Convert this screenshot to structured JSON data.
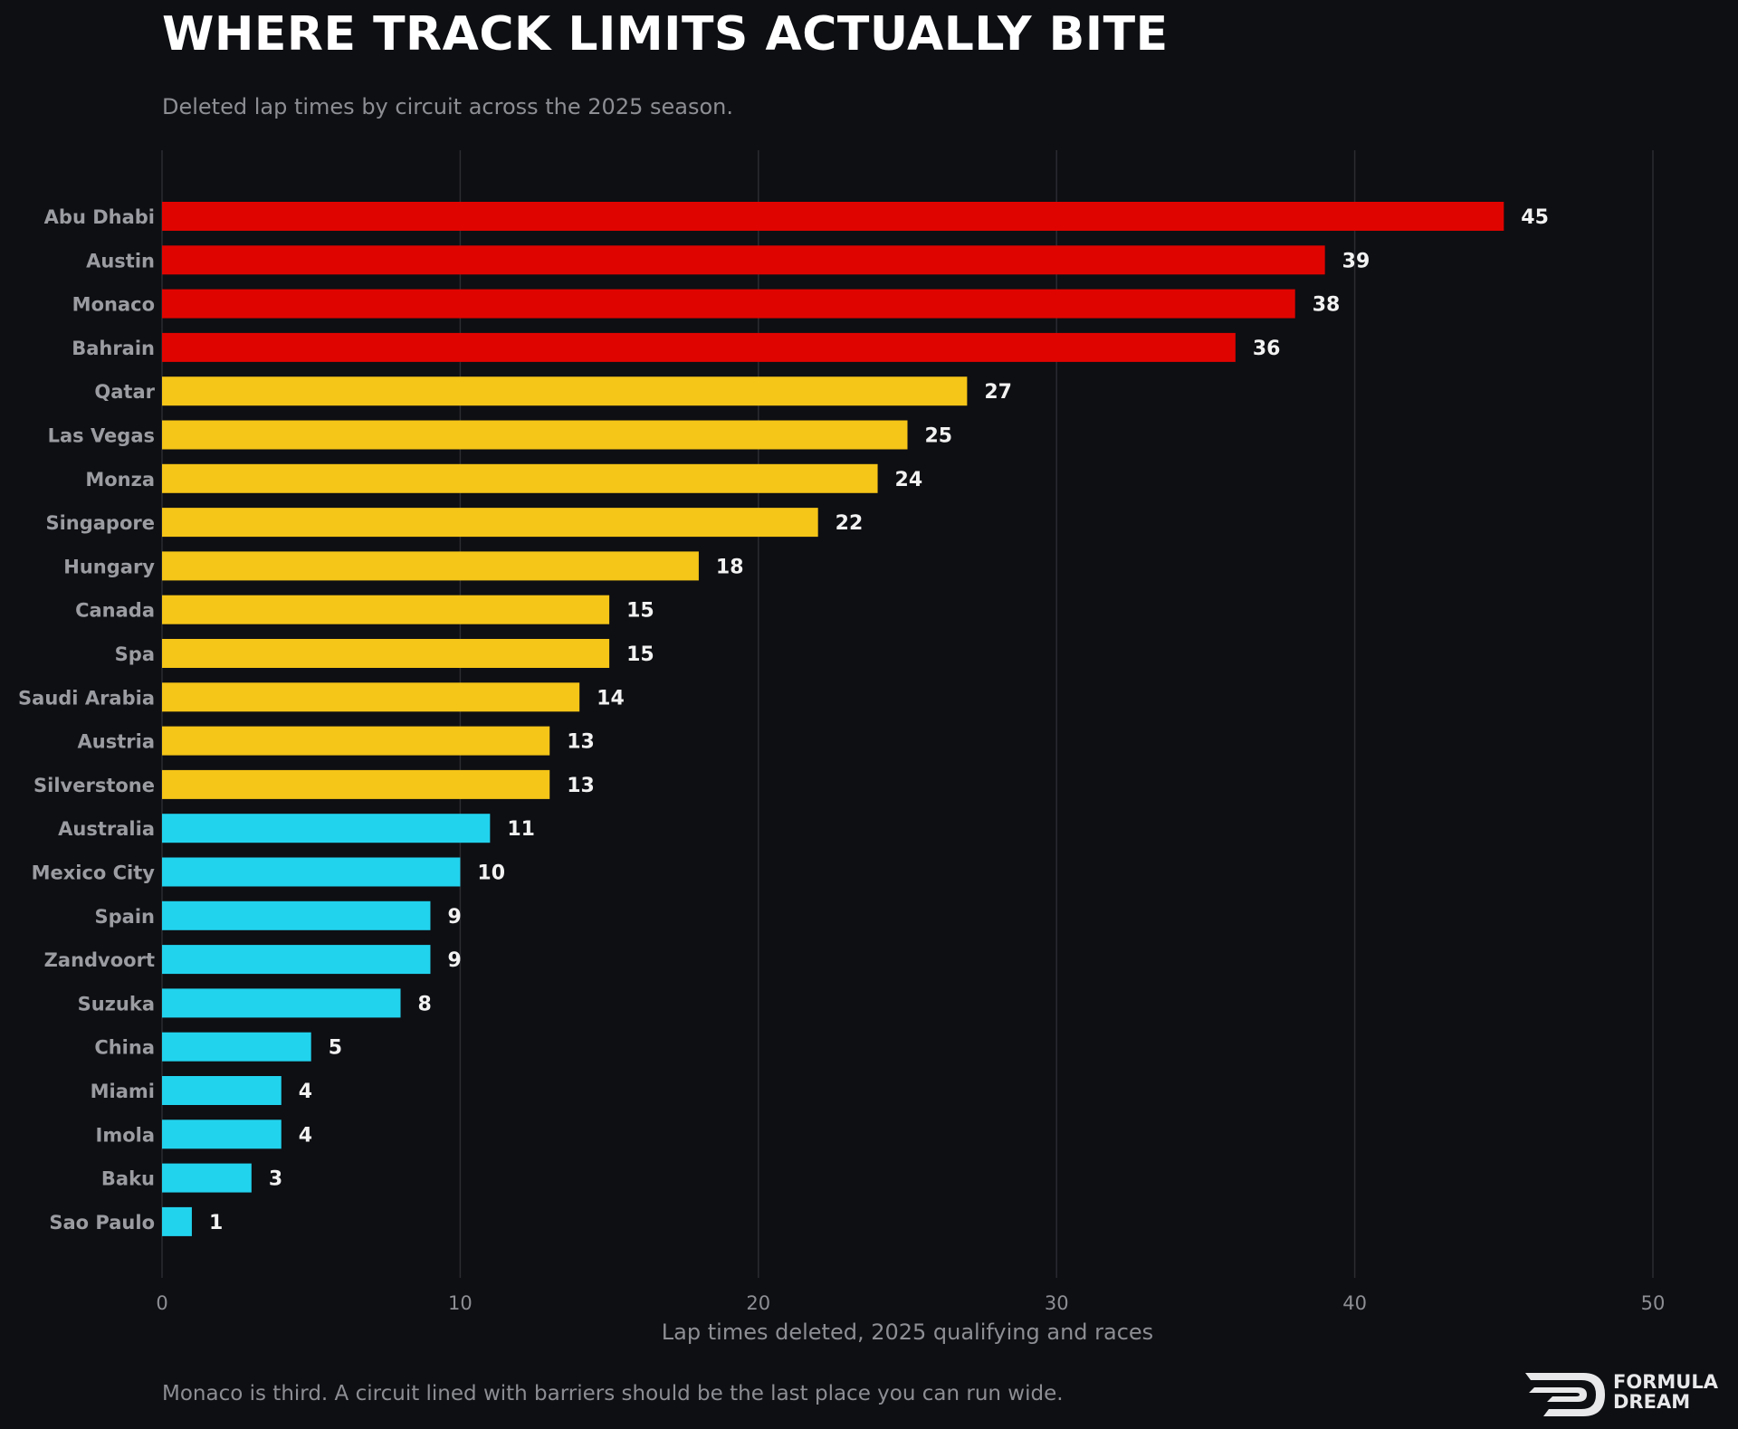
{
  "header": {
    "title": "WHERE TRACK LIMITS ACTUALLY BITE",
    "subtitle": "Deleted lap times by circuit across the 2025 season."
  },
  "footer": {
    "note": "Monaco is third. A circuit lined with barriers should be the last place you can run wide."
  },
  "logo": {
    "line1": "FORMULA",
    "line2": "DREAM"
  },
  "colors": {
    "background": "#0e0f13",
    "high": "#e00400",
    "mid": "#f5c518",
    "low": "#22d3ee",
    "grid": "#2a2c31",
    "category_label": "#9a9ca2",
    "value_label": "#f2f2f2",
    "axis_text": "#8c8e94"
  },
  "chart_data": {
    "type": "bar",
    "orientation": "horizontal",
    "categories": [
      "Abu Dhabi",
      "Austin",
      "Monaco",
      "Bahrain",
      "Qatar",
      "Las Vegas",
      "Monza",
      "Singapore",
      "Hungary",
      "Canada",
      "Spa",
      "Saudi Arabia",
      "Austria",
      "Silverstone",
      "Australia",
      "Mexico City",
      "Spain",
      "Zandvoort",
      "Suzuka",
      "China",
      "Miami",
      "Imola",
      "Baku",
      "Sao Paulo"
    ],
    "values": [
      45,
      39,
      38,
      36,
      27,
      25,
      24,
      22,
      18,
      15,
      15,
      14,
      13,
      13,
      11,
      10,
      9,
      9,
      8,
      5,
      4,
      4,
      3,
      1
    ],
    "bar_tiers": [
      "high",
      "high",
      "high",
      "high",
      "mid",
      "mid",
      "mid",
      "mid",
      "mid",
      "mid",
      "mid",
      "mid",
      "mid",
      "mid",
      "low",
      "low",
      "low",
      "low",
      "low",
      "low",
      "low",
      "low",
      "low",
      "low"
    ],
    "xlabel": "Lap times deleted, 2025 qualifying and races",
    "xlim": [
      0,
      50
    ],
    "xticks": [
      0,
      10,
      20,
      30,
      40,
      50
    ],
    "grid": "vertical",
    "legend": "none"
  }
}
